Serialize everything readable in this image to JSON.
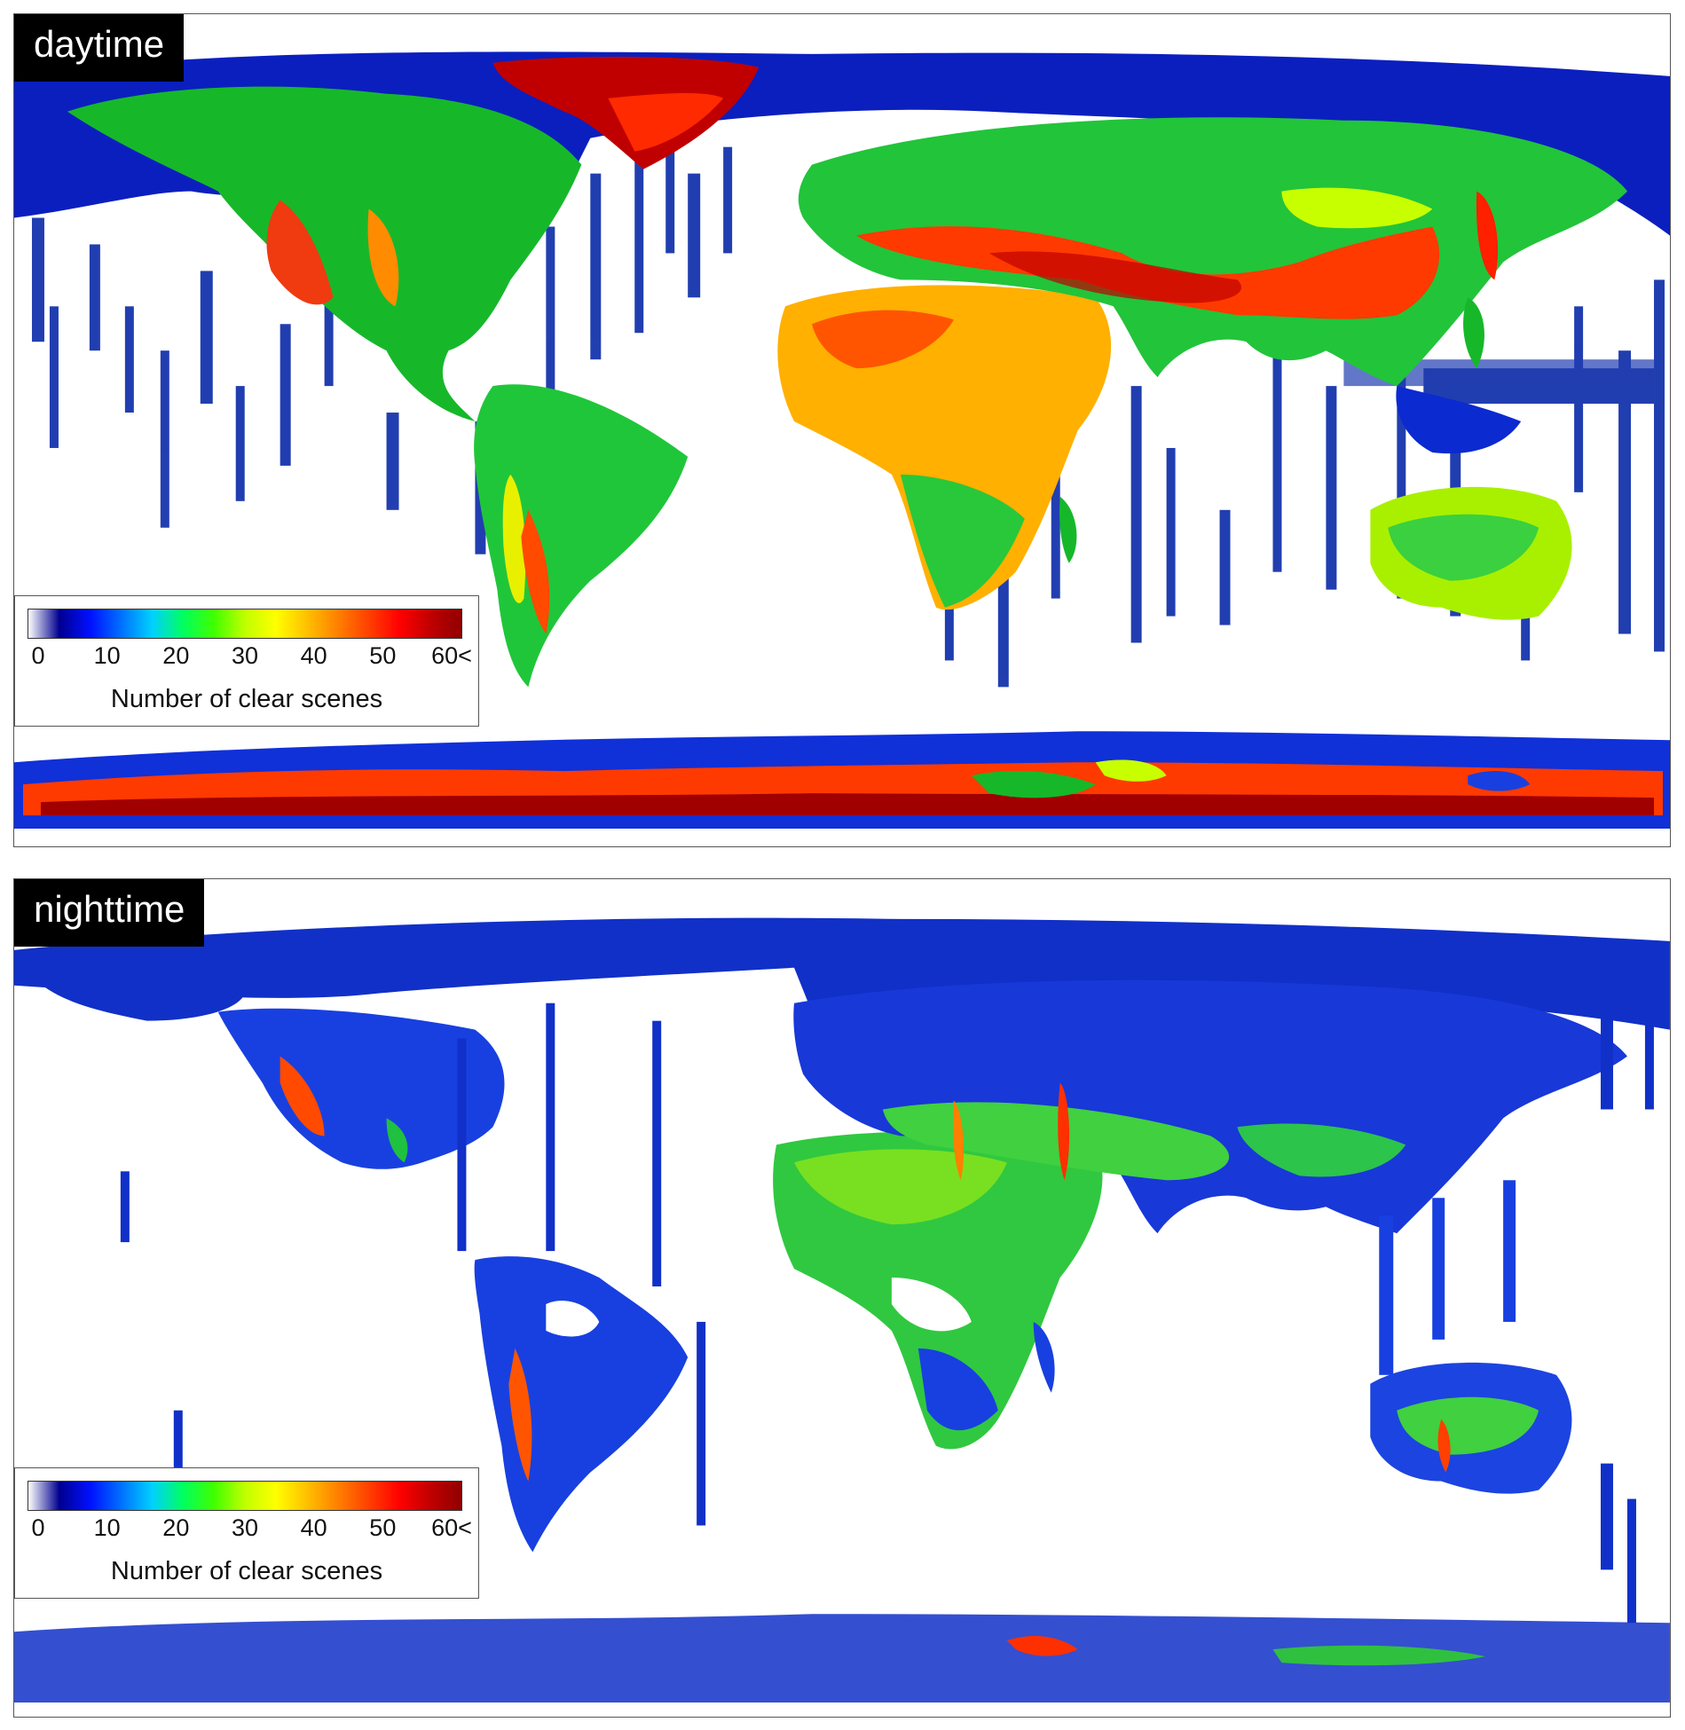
{
  "panels": [
    {
      "id": "day",
      "label": "daytime"
    },
    {
      "id": "night",
      "label": "nighttime"
    }
  ],
  "colorbar": {
    "title": "Number of clear scenes",
    "ticks": [
      "0",
      "10",
      "20",
      "30",
      "40",
      "50",
      "60<"
    ],
    "min": 0,
    "max": 60,
    "colors": [
      "#ffffff",
      "#00008f",
      "#0010ff",
      "#0070ff",
      "#00d0ff",
      "#00ff60",
      "#40ff00",
      "#c0ff00",
      "#ffff00",
      "#ffc000",
      "#ff8000",
      "#ff4000",
      "#ff0000",
      "#c00000",
      "#900000"
    ]
  }
}
